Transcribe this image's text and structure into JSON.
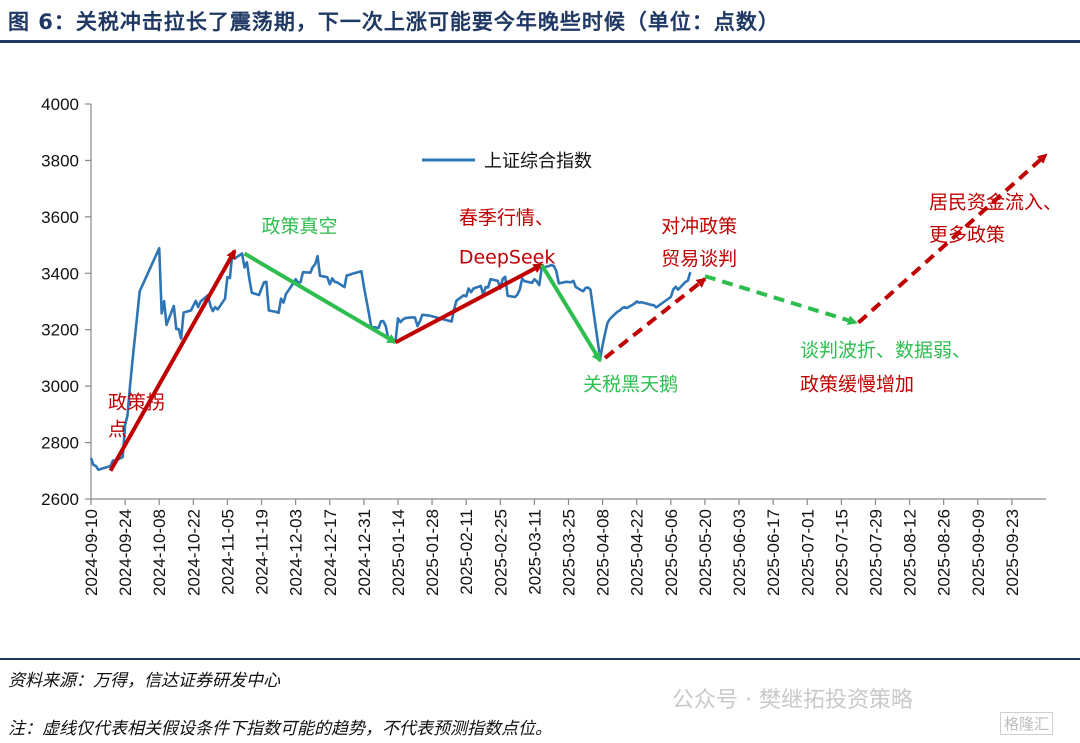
{
  "figure": {
    "title": "图 6：关税冲击拉长了震荡期，下一次上涨可能要今年晚些时候（单位：点数）",
    "source": "资料来源：万得，信达证券研发中心",
    "note": "注：虚线仅代表相关假设条件下指数可能的趋势，不代表预测指数点位。",
    "watermark": "公众号 · 樊继拓投资策略",
    "watermark_corner": "格隆汇"
  },
  "chart_data": {
    "type": "line",
    "title": "",
    "xlabel": "",
    "ylabel": "",
    "ylim": [
      2600,
      4000
    ],
    "yticks": [
      2600,
      2800,
      3000,
      3200,
      3400,
      3600,
      3800,
      4000
    ],
    "xlim": [
      "2024-09-10",
      "2025-10-07"
    ],
    "xticks": [
      "2024-09-10",
      "2024-09-24",
      "2024-10-08",
      "2024-10-22",
      "2024-11-05",
      "2024-11-19",
      "2024-12-03",
      "2024-12-17",
      "2024-12-31",
      "2025-01-14",
      "2025-01-28",
      "2025-02-11",
      "2025-02-25",
      "2025-03-11",
      "2025-03-25",
      "2025-04-08",
      "2025-04-22",
      "2025-05-06",
      "2025-05-20",
      "2025-06-03",
      "2025-06-17",
      "2025-07-01",
      "2025-07-15",
      "2025-07-29",
      "2025-08-12",
      "2025-08-26",
      "2025-09-09",
      "2025-09-23"
    ],
    "grid": false,
    "legend": {
      "position": "top-center",
      "entries": [
        "上证综合指数"
      ]
    },
    "colors": {
      "series": "#2e75b6",
      "up": "#c00000",
      "down": "#2ebd4f"
    },
    "series": [
      {
        "name": "上证综合指数",
        "points": [
          [
            "2024-09-10",
            2745
          ],
          [
            "2024-09-11",
            2721
          ],
          [
            "2024-09-12",
            2717
          ],
          [
            "2024-09-13",
            2704
          ],
          [
            "2024-09-18",
            2717
          ],
          [
            "2024-09-19",
            2736
          ],
          [
            "2024-09-20",
            2736
          ],
          [
            "2024-09-23",
            2748
          ],
          [
            "2024-09-24",
            2863
          ],
          [
            "2024-09-25",
            2896
          ],
          [
            "2024-09-26",
            3000
          ],
          [
            "2024-09-27",
            3087
          ],
          [
            "2024-09-30",
            3336
          ],
          [
            "2024-10-08",
            3489
          ],
          [
            "2024-10-09",
            3258
          ],
          [
            "2024-10-10",
            3301
          ],
          [
            "2024-10-11",
            3217
          ],
          [
            "2024-10-14",
            3284
          ],
          [
            "2024-10-15",
            3202
          ],
          [
            "2024-10-16",
            3202
          ],
          [
            "2024-10-17",
            3169
          ],
          [
            "2024-10-18",
            3261
          ],
          [
            "2024-10-21",
            3268
          ],
          [
            "2024-10-22",
            3285
          ],
          [
            "2024-10-23",
            3302
          ],
          [
            "2024-10-24",
            3280
          ],
          [
            "2024-10-25",
            3300
          ],
          [
            "2024-10-28",
            3322
          ],
          [
            "2024-10-29",
            3286
          ],
          [
            "2024-10-30",
            3266
          ],
          [
            "2024-10-31",
            3280
          ],
          [
            "2024-11-01",
            3272
          ],
          [
            "2024-11-04",
            3310
          ],
          [
            "2024-11-05",
            3387
          ],
          [
            "2024-11-06",
            3383
          ],
          [
            "2024-11-07",
            3471
          ],
          [
            "2024-11-08",
            3452
          ],
          [
            "2024-11-11",
            3470
          ],
          [
            "2024-11-12",
            3421
          ],
          [
            "2024-11-13",
            3439
          ],
          [
            "2024-11-14",
            3379
          ],
          [
            "2024-11-15",
            3331
          ],
          [
            "2024-11-18",
            3323
          ],
          [
            "2024-11-19",
            3346
          ],
          [
            "2024-11-20",
            3368
          ],
          [
            "2024-11-21",
            3370
          ],
          [
            "2024-11-22",
            3268
          ],
          [
            "2024-11-25",
            3263
          ],
          [
            "2024-11-26",
            3260
          ],
          [
            "2024-11-27",
            3310
          ],
          [
            "2024-11-28",
            3296
          ],
          [
            "2024-11-29",
            3326
          ],
          [
            "2024-12-02",
            3364
          ],
          [
            "2024-12-03",
            3379
          ],
          [
            "2024-12-04",
            3367
          ],
          [
            "2024-12-05",
            3368
          ],
          [
            "2024-12-06",
            3404
          ],
          [
            "2024-12-09",
            3402
          ],
          [
            "2024-12-10",
            3422
          ],
          [
            "2024-12-11",
            3432
          ],
          [
            "2024-12-12",
            3461
          ],
          [
            "2024-12-13",
            3391
          ],
          [
            "2024-12-16",
            3386
          ],
          [
            "2024-12-17",
            3361
          ],
          [
            "2024-12-18",
            3382
          ],
          [
            "2024-12-19",
            3370
          ],
          [
            "2024-12-20",
            3368
          ],
          [
            "2024-12-23",
            3351
          ],
          [
            "2024-12-24",
            3393
          ],
          [
            "2024-12-25",
            3394
          ],
          [
            "2024-12-26",
            3398
          ],
          [
            "2024-12-27",
            3400
          ],
          [
            "2024-12-30",
            3407
          ],
          [
            "2024-12-31",
            3352
          ],
          [
            "2025-01-02",
            3262
          ],
          [
            "2025-01-03",
            3211
          ],
          [
            "2025-01-06",
            3206
          ],
          [
            "2025-01-07",
            3230
          ],
          [
            "2025-01-08",
            3231
          ],
          [
            "2025-01-09",
            3212
          ],
          [
            "2025-01-10",
            3169
          ],
          [
            "2025-01-13",
            3160
          ],
          [
            "2025-01-14",
            3240
          ],
          [
            "2025-01-15",
            3227
          ],
          [
            "2025-01-16",
            3236
          ],
          [
            "2025-01-17",
            3241
          ],
          [
            "2025-01-20",
            3244
          ],
          [
            "2025-01-21",
            3243
          ],
          [
            "2025-01-22",
            3213
          ],
          [
            "2025-01-23",
            3230
          ],
          [
            "2025-01-24",
            3253
          ],
          [
            "2025-01-27",
            3250
          ],
          [
            "2025-02-05",
            3229
          ],
          [
            "2025-02-06",
            3270
          ],
          [
            "2025-02-07",
            3303
          ],
          [
            "2025-02-10",
            3322
          ],
          [
            "2025-02-11",
            3318
          ],
          [
            "2025-02-12",
            3346
          ],
          [
            "2025-02-13",
            3333
          ],
          [
            "2025-02-14",
            3346
          ],
          [
            "2025-02-17",
            3355
          ],
          [
            "2025-02-18",
            3325
          ],
          [
            "2025-02-19",
            3351
          ],
          [
            "2025-02-20",
            3350
          ],
          [
            "2025-02-21",
            3379
          ],
          [
            "2025-02-24",
            3373
          ],
          [
            "2025-02-25",
            3346
          ],
          [
            "2025-02-26",
            3380
          ],
          [
            "2025-02-27",
            3388
          ],
          [
            "2025-02-28",
            3320
          ],
          [
            "2025-03-03",
            3316
          ],
          [
            "2025-03-04",
            3324
          ],
          [
            "2025-03-05",
            3342
          ],
          [
            "2025-03-06",
            3381
          ],
          [
            "2025-03-07",
            3372
          ],
          [
            "2025-03-10",
            3366
          ],
          [
            "2025-03-11",
            3379
          ],
          [
            "2025-03-12",
            3371
          ],
          [
            "2025-03-13",
            3358
          ],
          [
            "2025-03-14",
            3419
          ],
          [
            "2025-03-17",
            3426
          ],
          [
            "2025-03-18",
            3429
          ],
          [
            "2025-03-19",
            3426
          ],
          [
            "2025-03-20",
            3408
          ],
          [
            "2025-03-21",
            3364
          ],
          [
            "2025-03-24",
            3370
          ],
          [
            "2025-03-25",
            3369
          ],
          [
            "2025-03-26",
            3368
          ],
          [
            "2025-03-27",
            3373
          ],
          [
            "2025-03-28",
            3351
          ],
          [
            "2025-03-31",
            3336
          ],
          [
            "2025-04-01",
            3348
          ],
          [
            "2025-04-02",
            3350
          ],
          [
            "2025-04-03",
            3342
          ],
          [
            "2025-04-07",
            3097
          ],
          [
            "2025-04-08",
            3145
          ],
          [
            "2025-04-09",
            3186
          ],
          [
            "2025-04-10",
            3224
          ],
          [
            "2025-04-11",
            3238
          ],
          [
            "2025-04-14",
            3263
          ],
          [
            "2025-04-15",
            3268
          ],
          [
            "2025-04-16",
            3276
          ],
          [
            "2025-04-17",
            3280
          ],
          [
            "2025-04-18",
            3277
          ],
          [
            "2025-04-21",
            3292
          ],
          [
            "2025-04-22",
            3300
          ],
          [
            "2025-04-23",
            3296
          ],
          [
            "2025-04-24",
            3297
          ],
          [
            "2025-04-25",
            3295
          ],
          [
            "2025-04-28",
            3288
          ],
          [
            "2025-04-29",
            3287
          ],
          [
            "2025-04-30",
            3279
          ],
          [
            "2025-05-06",
            3316
          ],
          [
            "2025-05-07",
            3343
          ],
          [
            "2025-05-08",
            3352
          ],
          [
            "2025-05-09",
            3342
          ],
          [
            "2025-05-12",
            3369
          ],
          [
            "2025-05-13",
            3374
          ],
          [
            "2025-05-14",
            3404
          ]
        ]
      }
    ],
    "arrows": [
      {
        "style": "solid",
        "color": "#c00000",
        "from": [
          "2024-09-18",
          2700
        ],
        "to": [
          "2024-11-08",
          3480
        ]
      },
      {
        "style": "solid",
        "color": "#2ebd4f",
        "from": [
          "2024-11-12",
          3470
        ],
        "to": [
          "2025-01-13",
          3155
        ]
      },
      {
        "style": "solid",
        "color": "#c00000",
        "from": [
          "2025-01-13",
          3155
        ],
        "to": [
          "2025-03-14",
          3430
        ]
      },
      {
        "style": "solid",
        "color": "#2ebd4f",
        "from": [
          "2025-03-14",
          3430
        ],
        "to": [
          "2025-04-07",
          3090
        ]
      },
      {
        "style": "dashed",
        "color": "#c00000",
        "from": [
          "2025-04-09",
          3100
        ],
        "to": [
          "2025-05-20",
          3380
        ]
      },
      {
        "style": "dashed",
        "color": "#2ebd4f",
        "from": [
          "2025-05-20",
          3390
        ],
        "to": [
          "2025-07-21",
          3225
        ]
      },
      {
        "style": "dashed",
        "color": "#c00000",
        "from": [
          "2025-07-22",
          3225
        ],
        "to": [
          "2025-10-07",
          3820
        ]
      }
    ],
    "annotations": [
      {
        "text": "政策拐",
        "color": "#c00000",
        "at": [
          "2024-09-17",
          2920
        ]
      },
      {
        "text": "点",
        "color": "#c00000",
        "at": [
          "2024-09-17",
          2825
        ]
      },
      {
        "text": "政策真空",
        "color": "#2ebd4f",
        "at": [
          "2024-11-19",
          3545
        ]
      },
      {
        "text": "春季行情、",
        "color": "#c00000",
        "at": [
          "2025-02-08",
          3575
        ]
      },
      {
        "text": "DeepSeek",
        "color": "#c00000",
        "at": [
          "2025-02-08",
          3435
        ]
      },
      {
        "text": "对冲政策",
        "color": "#c00000",
        "at": [
          "2025-05-02",
          3545
        ]
      },
      {
        "text": "贸易谈判",
        "color": "#c00000",
        "at": [
          "2025-05-02",
          3430
        ]
      },
      {
        "text": "关税黑天鹅",
        "color": "#2ebd4f",
        "at": [
          "2025-03-31",
          2985
        ]
      },
      {
        "text": "谈判波折、数据弱、",
        "color": "#2ebd4f",
        "at": [
          "2025-06-28",
          3105
        ]
      },
      {
        "text": "政策缓慢增加",
        "color": "#c00000",
        "at": [
          "2025-06-28",
          2985
        ]
      },
      {
        "text": "居民资金流入、",
        "color": "#c00000",
        "at": [
          "2025-08-20",
          3630
        ]
      },
      {
        "text": "更多政策",
        "color": "#c00000",
        "at": [
          "2025-08-20",
          3515
        ]
      }
    ]
  }
}
